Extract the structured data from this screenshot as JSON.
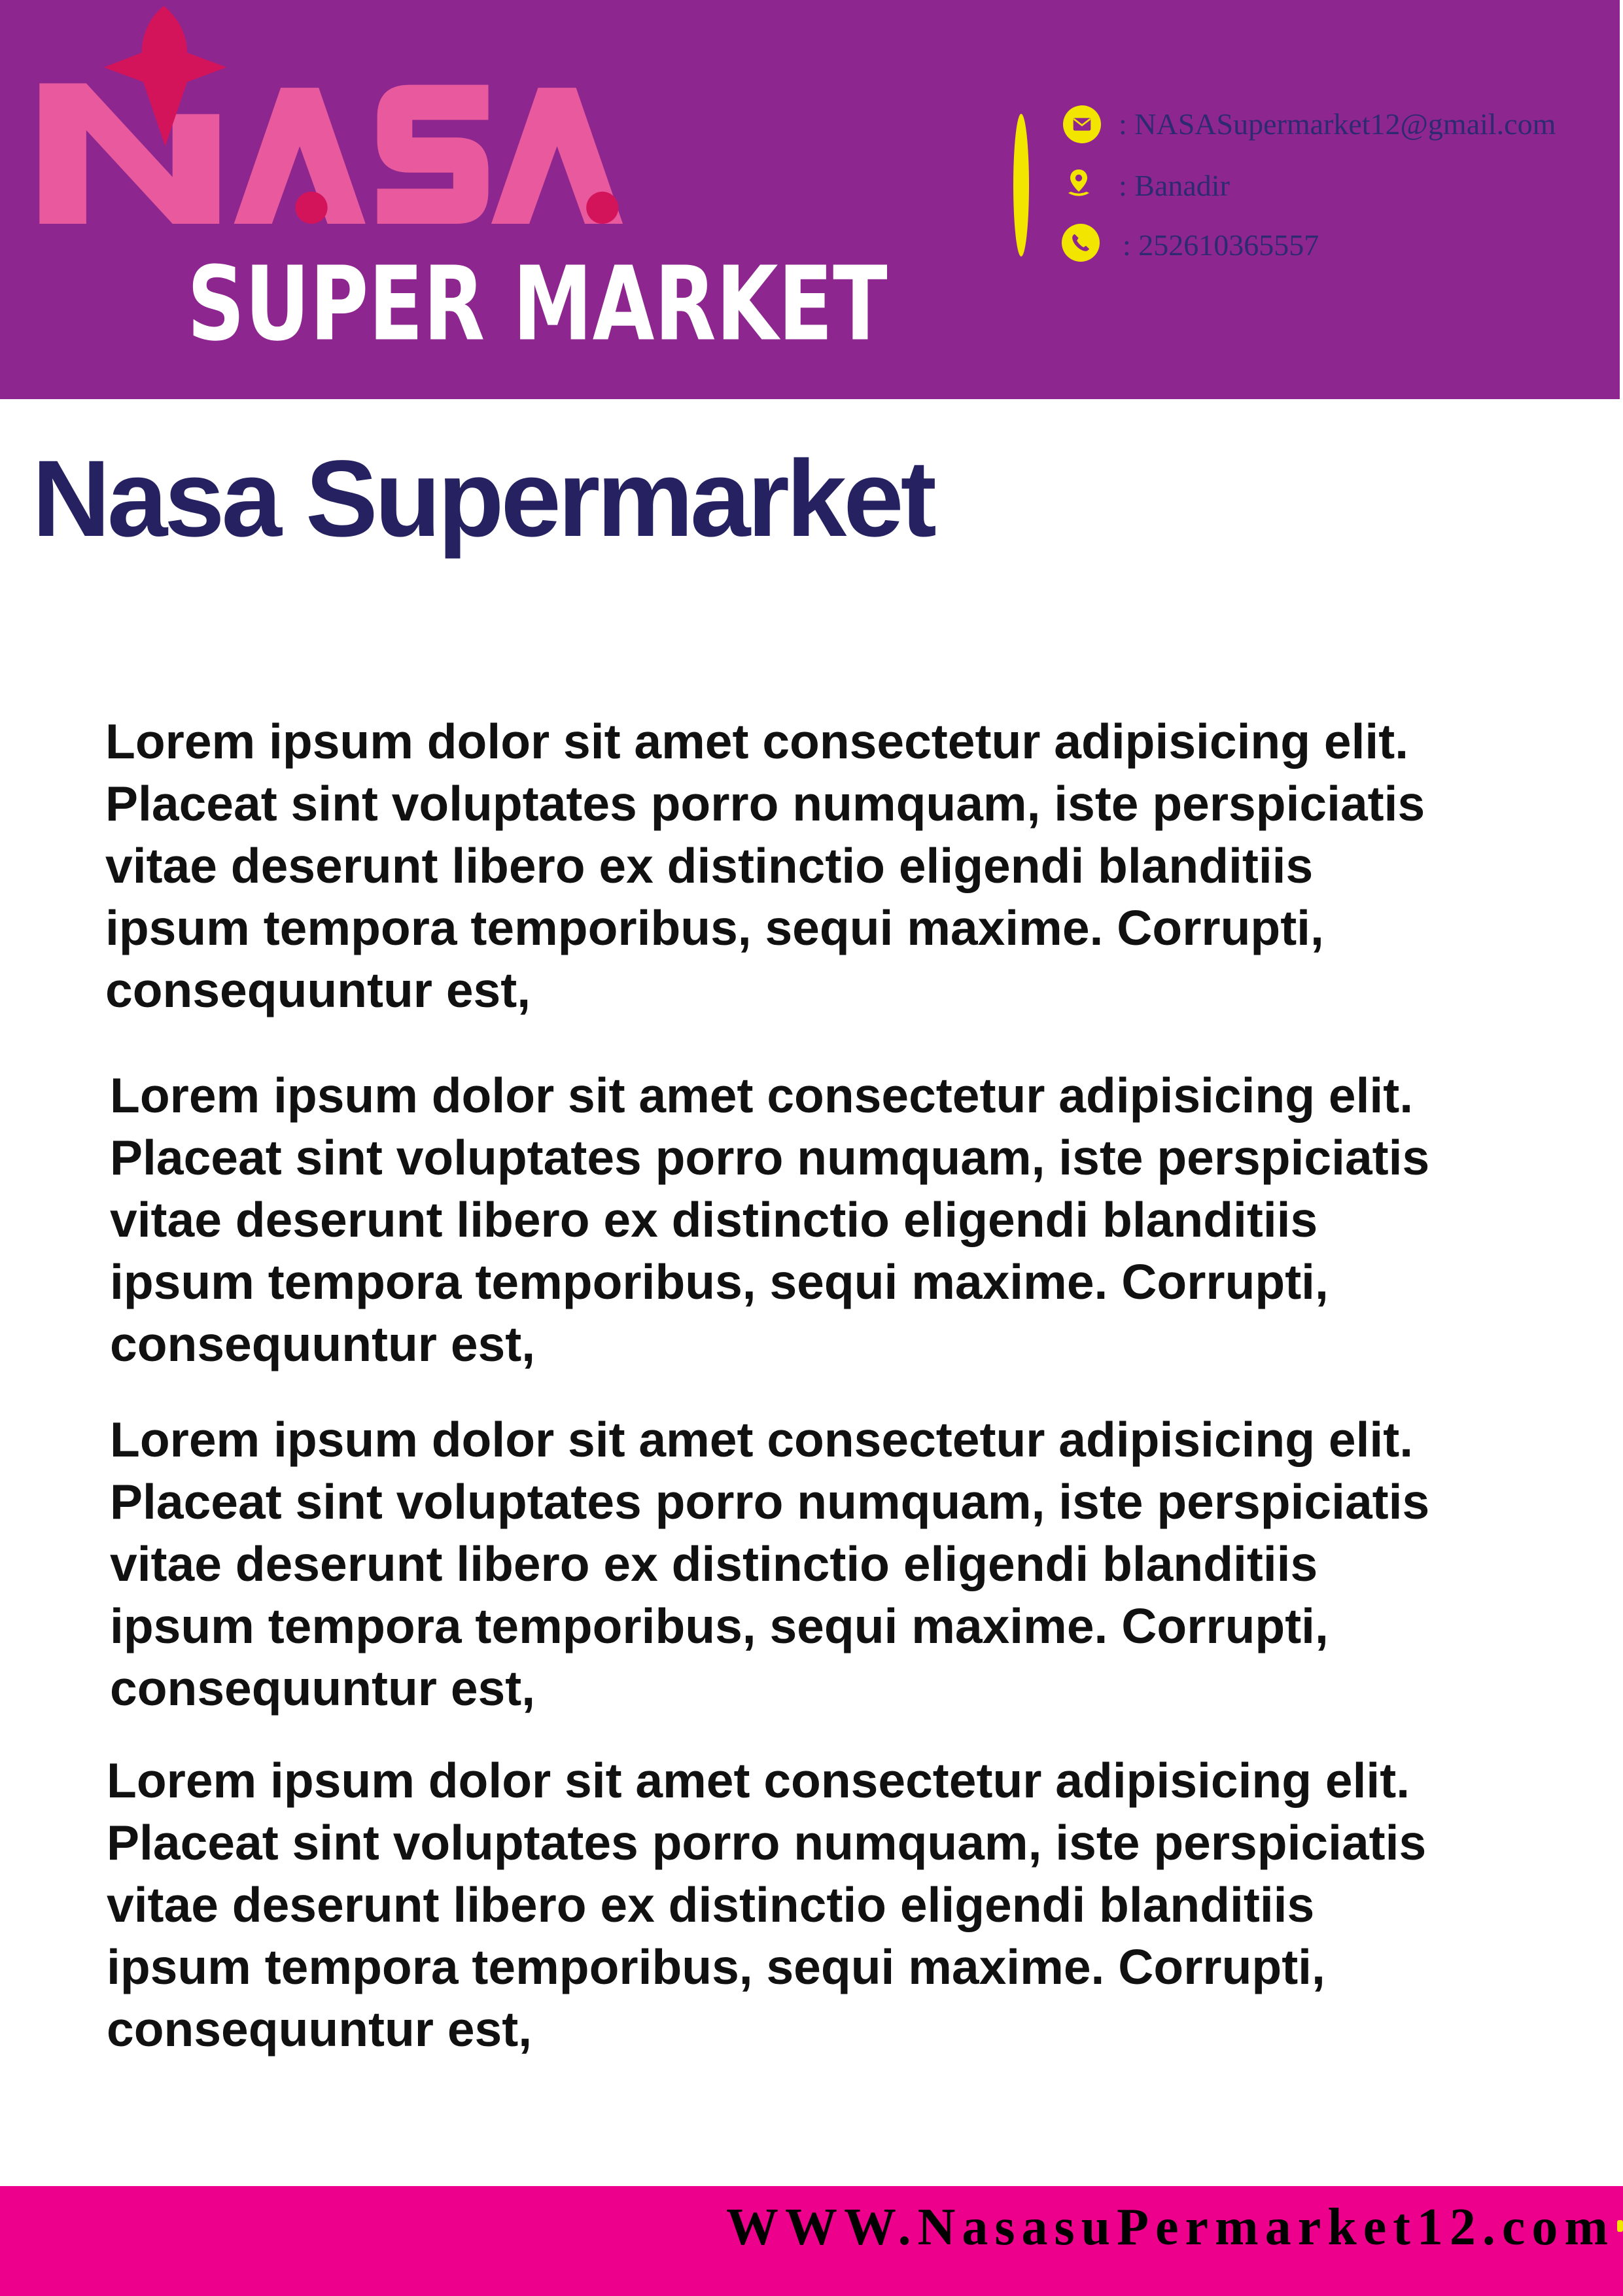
{
  "header": {
    "logo": {
      "wordmark": "NASA",
      "tagline": "SUPER MARKET"
    },
    "contact": [
      {
        "icon": "envelope-icon",
        "text": ": NASASupermarket12@gmail.com"
      },
      {
        "icon": "location-pin-icon",
        "text": ": Banadir"
      },
      {
        "icon": "phone-icon",
        "text": ": 252610365557"
      }
    ]
  },
  "document": {
    "title": "Nasa Supermarket",
    "paragraphs": [
      {
        "lines": [
          "Lorem ipsum dolor sit amet consectetur adipisicing elit.",
          "Placeat sint voluptates porro numquam, iste perspiciatis",
          "vitae deserunt libero ex distinctio eligendi blanditiis",
          "ipsum tempora temporibus, sequi maxime. Corrupti,",
          "consequuntur est,"
        ]
      },
      {
        "lines": [
          "Lorem ipsum dolor sit amet consectetur adipisicing elit.",
          "Placeat sint voluptates porro numquam, iste perspiciatis",
          "vitae deserunt libero ex distinctio eligendi blanditiis",
          "ipsum tempora temporibus, sequi maxime. Corrupti,",
          "consequuntur est,"
        ]
      },
      {
        "lines": [
          "Lorem ipsum dolor sit amet consectetur adipisicing elit.",
          "Placeat sint voluptates porro numquam, iste perspiciatis",
          "vitae deserunt libero ex distinctio eligendi blanditiis",
          "ipsum tempora temporibus, sequi maxime. Corrupti,",
          "consequuntur est,"
        ]
      },
      {
        "lines": [
          "Lorem ipsum dolor sit amet consectetur adipisicing elit.",
          "Placeat sint voluptates porro numquam, iste perspiciatis",
          "vitae deserunt libero ex distinctio eligendi blanditiis",
          "ipsum tempora temporibus, sequi maxime. Corrupti,",
          "consequuntur est,"
        ]
      }
    ]
  },
  "footer": {
    "website": "WWW.NasasuPermarket12.com"
  },
  "colors": {
    "header_band": "#8e268f",
    "logo_pink": "#e8599d",
    "logo_crimson": "#d4145a",
    "contact_yellow": "#f2e500",
    "contact_text": "#2e2a70",
    "title": "#262262",
    "body_text": "#111111",
    "footer_band": "#ec008c"
  }
}
